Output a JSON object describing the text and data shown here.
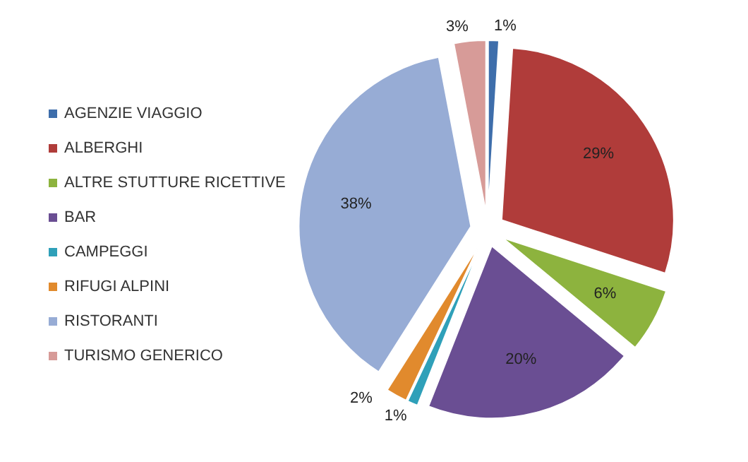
{
  "chart_data": {
    "type": "pie",
    "categories": [
      "AGENZIE VIAGGIO",
      "ALBERGHI",
      "ALTRE STUTTURE RICETTIVE",
      "BAR",
      "CAMPEGGI",
      "RIFUGI ALPINI",
      "RISTORANTI",
      "TURISMO GENERICO"
    ],
    "values": [
      1,
      29,
      6,
      20,
      1,
      2,
      38,
      3
    ],
    "colors": [
      "#3e6eab",
      "#b03c3a",
      "#8db33e",
      "#6a4e93",
      "#2fa0b9",
      "#e18a2d",
      "#97acd5",
      "#d79b98"
    ],
    "value_labels": [
      "1%",
      "29%",
      "6%",
      "20%",
      "1%",
      "2%",
      "38%",
      "3%"
    ],
    "legend": "left"
  }
}
